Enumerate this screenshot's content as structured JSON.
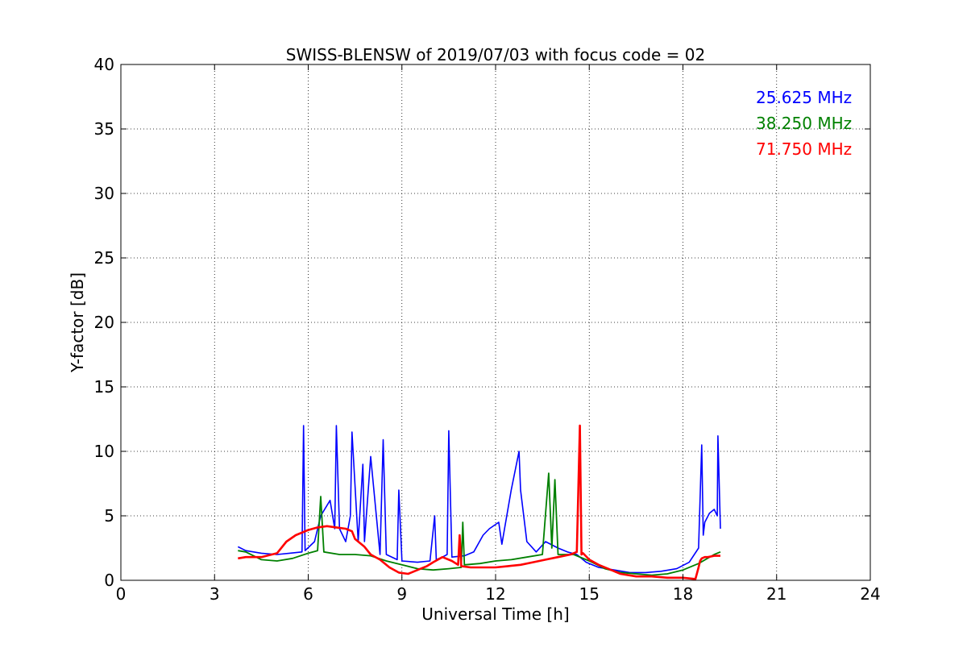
{
  "chart_data": {
    "type": "line",
    "title": "SWISS-BLENSW of 2019/07/03 with focus code = 02",
    "xlabel": "Universal Time [h]",
    "ylabel": "Y-factor [dB]",
    "xlim": [
      0,
      24
    ],
    "ylim": [
      0,
      40
    ],
    "xticks": [
      0,
      3,
      6,
      9,
      12,
      15,
      18,
      21,
      24
    ],
    "yticks": [
      0,
      5,
      10,
      15,
      20,
      25,
      30,
      35,
      40
    ],
    "grid": true,
    "legend_position": "top-right",
    "series": [
      {
        "name": "25.625 MHz",
        "color": "#0000ff",
        "x": [
          3.75,
          4.0,
          4.5,
          5.0,
          5.4,
          5.8,
          5.85,
          5.9,
          6.2,
          6.4,
          6.7,
          6.85,
          6.9,
          7.0,
          7.2,
          7.35,
          7.4,
          7.6,
          7.75,
          7.8,
          8.0,
          8.3,
          8.4,
          8.5,
          8.85,
          8.9,
          9.0,
          9.5,
          9.9,
          10.05,
          10.1,
          10.3,
          10.45,
          10.5,
          10.6,
          11.0,
          11.3,
          11.6,
          11.8,
          12.1,
          12.2,
          12.5,
          12.75,
          12.8,
          13.0,
          13.3,
          13.6,
          14.0,
          14.3,
          14.6,
          14.9,
          15.3,
          15.8,
          16.3,
          16.8,
          17.3,
          17.8,
          18.2,
          18.5,
          18.6,
          18.65,
          18.7,
          18.85,
          19.0,
          19.1,
          19.12,
          19.2
        ],
        "y": [
          2.6,
          2.3,
          2.1,
          2.0,
          2.1,
          2.2,
          12.0,
          2.3,
          3.0,
          5.0,
          6.2,
          4.0,
          12.0,
          4.0,
          3.0,
          5.0,
          11.5,
          3.0,
          9.0,
          3.0,
          9.6,
          2.0,
          10.9,
          2.0,
          1.6,
          7.0,
          1.5,
          1.4,
          1.5,
          5.0,
          1.6,
          1.8,
          2.0,
          11.6,
          1.8,
          1.9,
          2.2,
          3.5,
          4.0,
          4.5,
          2.8,
          7.0,
          10.0,
          7.0,
          3.0,
          2.2,
          3.0,
          2.5,
          2.2,
          2.0,
          1.4,
          1.0,
          0.8,
          0.6,
          0.6,
          0.7,
          0.9,
          1.4,
          2.5,
          10.5,
          3.5,
          4.5,
          5.2,
          5.5,
          5.0,
          11.2,
          4.0
        ]
      },
      {
        "name": "38.250 MHz",
        "color": "#008000",
        "x": [
          3.75,
          4.0,
          4.5,
          5.0,
          5.5,
          6.0,
          6.3,
          6.4,
          6.5,
          7.0,
          7.5,
          8.0,
          8.5,
          9.0,
          9.5,
          10.0,
          10.5,
          10.9,
          10.95,
          11.0,
          11.5,
          12.0,
          12.5,
          13.0,
          13.5,
          13.7,
          13.8,
          13.9,
          14.0,
          14.5,
          15.0,
          15.5,
          16.0,
          16.5,
          17.0,
          17.5,
          18.0,
          18.5,
          19.0,
          19.2
        ],
        "y": [
          2.3,
          2.2,
          1.6,
          1.5,
          1.7,
          2.1,
          2.3,
          6.5,
          2.2,
          2.0,
          2.0,
          1.9,
          1.5,
          1.2,
          0.9,
          0.8,
          0.9,
          1.0,
          4.5,
          1.2,
          1.3,
          1.5,
          1.6,
          1.8,
          2.0,
          8.3,
          2.5,
          7.8,
          2.0,
          2.0,
          1.5,
          0.9,
          0.6,
          0.5,
          0.4,
          0.5,
          0.8,
          1.3,
          2.0,
          2.2
        ]
      },
      {
        "name": "71.750 MHz",
        "color": "#ff0000",
        "x": [
          3.75,
          4.0,
          4.5,
          5.0,
          5.3,
          5.6,
          6.0,
          6.3,
          6.6,
          6.9,
          7.2,
          7.4,
          7.5,
          7.8,
          8.0,
          8.3,
          8.6,
          8.9,
          9.2,
          9.5,
          9.8,
          10.0,
          10.3,
          10.6,
          10.8,
          10.85,
          10.9,
          11.2,
          11.6,
          12.0,
          12.4,
          12.8,
          13.2,
          13.6,
          14.0,
          14.4,
          14.6,
          14.7,
          14.75,
          14.8,
          15.0,
          15.3,
          15.6,
          16.0,
          16.5,
          17.0,
          17.5,
          18.0,
          18.4,
          18.5,
          18.55,
          18.6,
          18.7,
          18.8,
          19.0,
          19.2
        ],
        "y": [
          1.7,
          1.8,
          1.8,
          2.1,
          3.0,
          3.5,
          3.9,
          4.1,
          4.2,
          4.1,
          4.0,
          3.8,
          3.2,
          2.6,
          2.0,
          1.6,
          1.0,
          0.6,
          0.5,
          0.8,
          1.1,
          1.4,
          1.8,
          1.5,
          1.2,
          3.5,
          1.1,
          1.0,
          1.0,
          1.0,
          1.1,
          1.2,
          1.4,
          1.6,
          1.8,
          2.0,
          2.2,
          12.0,
          2.0,
          2.1,
          1.6,
          1.2,
          0.9,
          0.5,
          0.3,
          0.3,
          0.2,
          0.2,
          0.1,
          1.0,
          1.5,
          1.7,
          1.8,
          1.8,
          1.9,
          1.9
        ]
      }
    ]
  }
}
